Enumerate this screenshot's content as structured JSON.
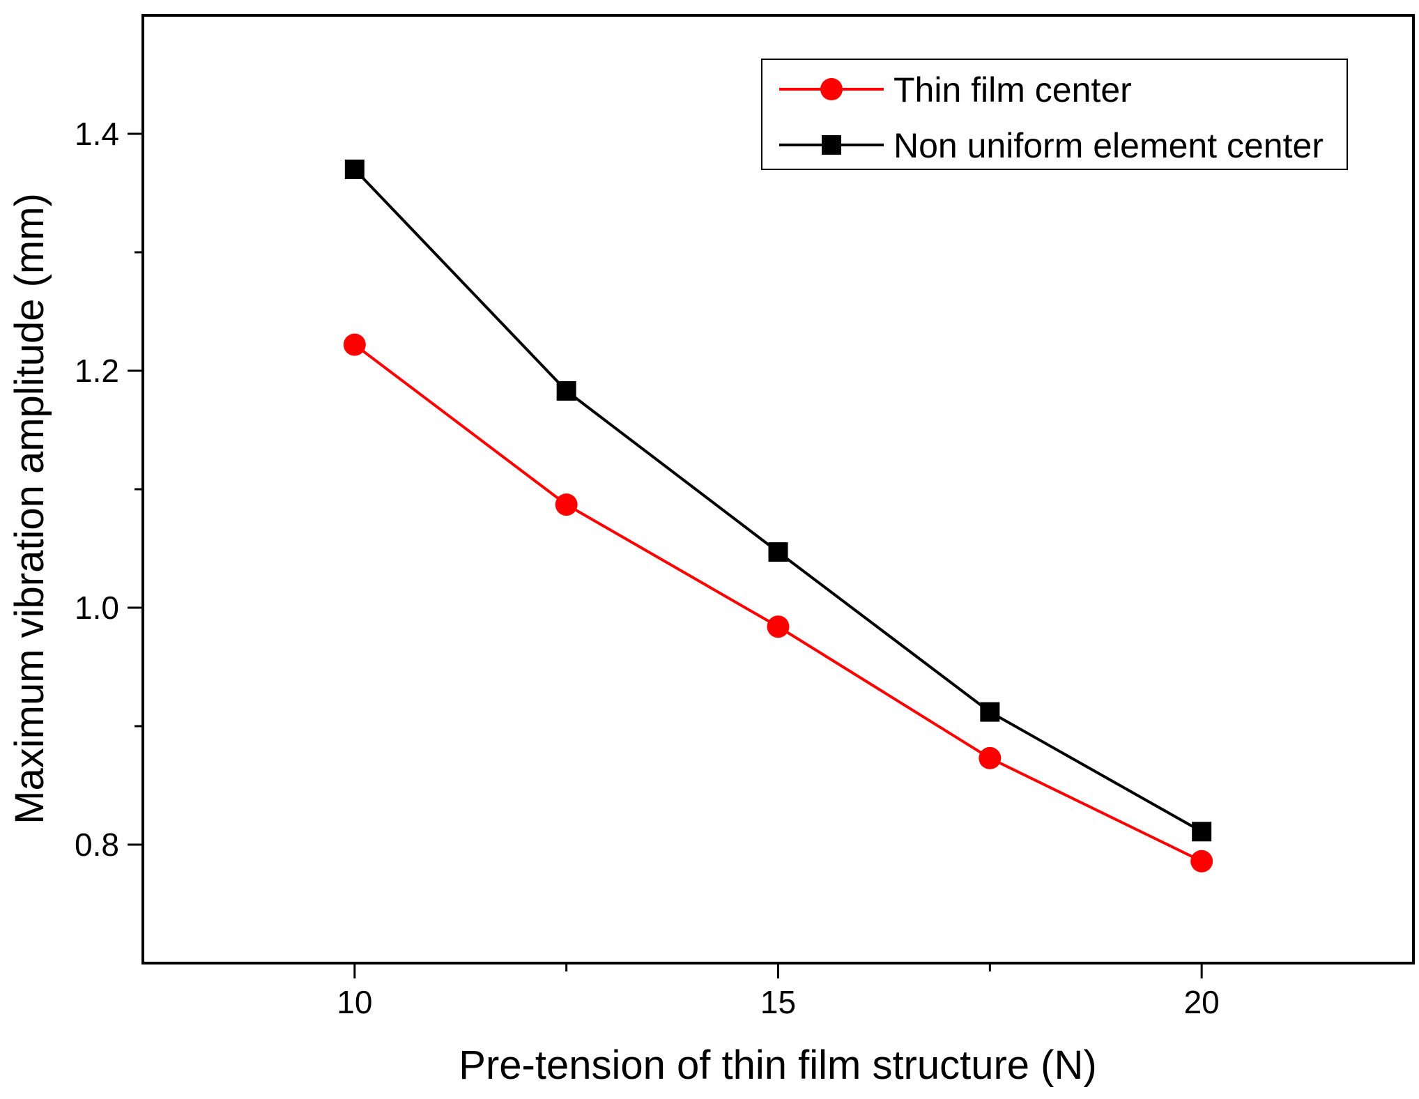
{
  "chart_data": {
    "type": "line",
    "xlabel": "Pre-tension of thin film structure (N)",
    "ylabel": "Maximum vibration amplitude (mm)",
    "xlim": [
      7.5,
      22.5
    ],
    "ylim": [
      0.7,
      1.5
    ],
    "x_ticks": [
      {
        "value": 10,
        "label": "10"
      },
      {
        "value": 15,
        "label": "15"
      },
      {
        "value": 20,
        "label": "20"
      }
    ],
    "x_minor_ticks": [
      12.5,
      17.5
    ],
    "y_ticks": [
      {
        "value": 0.8,
        "label": "0.8"
      },
      {
        "value": 1.0,
        "label": "1.0"
      },
      {
        "value": 1.2,
        "label": "1.2"
      },
      {
        "value": 1.4,
        "label": "1.4"
      }
    ],
    "y_minor_ticks": [
      0.9,
      1.1,
      1.3
    ],
    "grid": false,
    "legend_position": "top-right",
    "series": [
      {
        "name": "Thin film center",
        "color": "#ff0000",
        "marker": "circle",
        "x": [
          10,
          12.5,
          15,
          17.5,
          20
        ],
        "values": [
          1.222,
          1.087,
          0.984,
          0.873,
          0.786
        ]
      },
      {
        "name": "Non uniform element center",
        "color": "#000000",
        "marker": "square",
        "x": [
          10,
          12.5,
          15,
          17.5,
          20
        ],
        "values": [
          1.37,
          1.183,
          1.047,
          0.912,
          0.811
        ]
      }
    ]
  }
}
